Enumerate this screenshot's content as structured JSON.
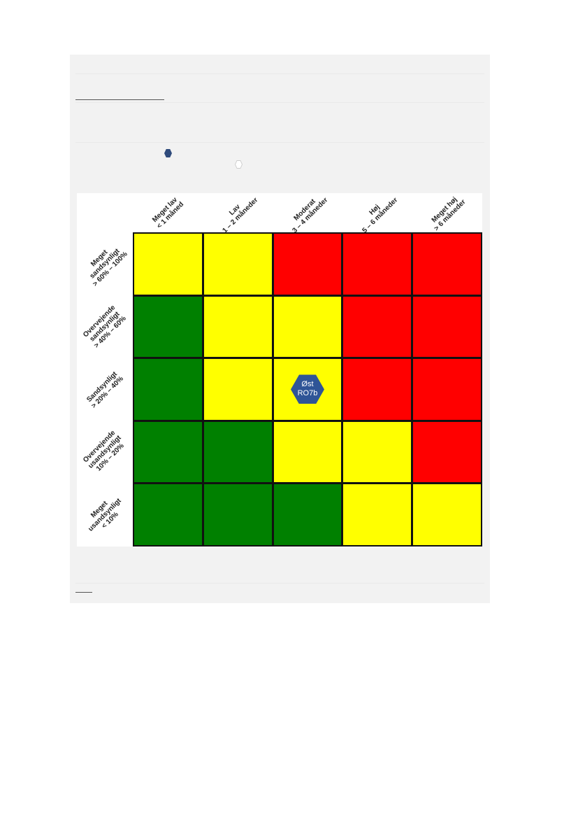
{
  "legend": {
    "filled_marker_color": "#2f4b7c",
    "empty_marker_color": "#ffffff"
  },
  "matrix": {
    "columns": [
      {
        "label": "Meget lav",
        "range": "< 1 måned"
      },
      {
        "label": "Lav",
        "range": "1 – 2 måneder"
      },
      {
        "label": "Moderat",
        "range": "3 – 4 måneder"
      },
      {
        "label": "Høj",
        "range": "5 – 6 måneder"
      },
      {
        "label": "Meget høj",
        "range": "> 6 måneder"
      }
    ],
    "rows": [
      {
        "label": "Meget",
        "label2": "sandsynligt",
        "range": "> 60% – 100%"
      },
      {
        "label": "Overvejende",
        "label2": "sandsynligt",
        "range": "> 40% – 60%"
      },
      {
        "label": "Sandsynligt",
        "label2": "",
        "range": "> 20% – 40%"
      },
      {
        "label": "Overvejende",
        "label2": "usandsynligt",
        "range": "10% – 20%"
      },
      {
        "label": "Meget",
        "label2": "usandsynligt",
        "range": "< 10%"
      }
    ],
    "cells": [
      [
        "yellow",
        "yellow",
        "red",
        "red",
        "red"
      ],
      [
        "green",
        "yellow",
        "yellow",
        "red",
        "red"
      ],
      [
        "green",
        "yellow",
        "yellow",
        "red",
        "red"
      ],
      [
        "green",
        "green",
        "yellow",
        "yellow",
        "red"
      ],
      [
        "green",
        "green",
        "green",
        "yellow",
        "yellow"
      ]
    ],
    "colors": {
      "green": "#008000",
      "yellow": "#ffff00",
      "red": "#ff0000"
    },
    "markers": [
      {
        "row": 2,
        "col": 2,
        "line1": "Øst",
        "line2": "RO7b",
        "color": "#2f5597"
      }
    ]
  }
}
